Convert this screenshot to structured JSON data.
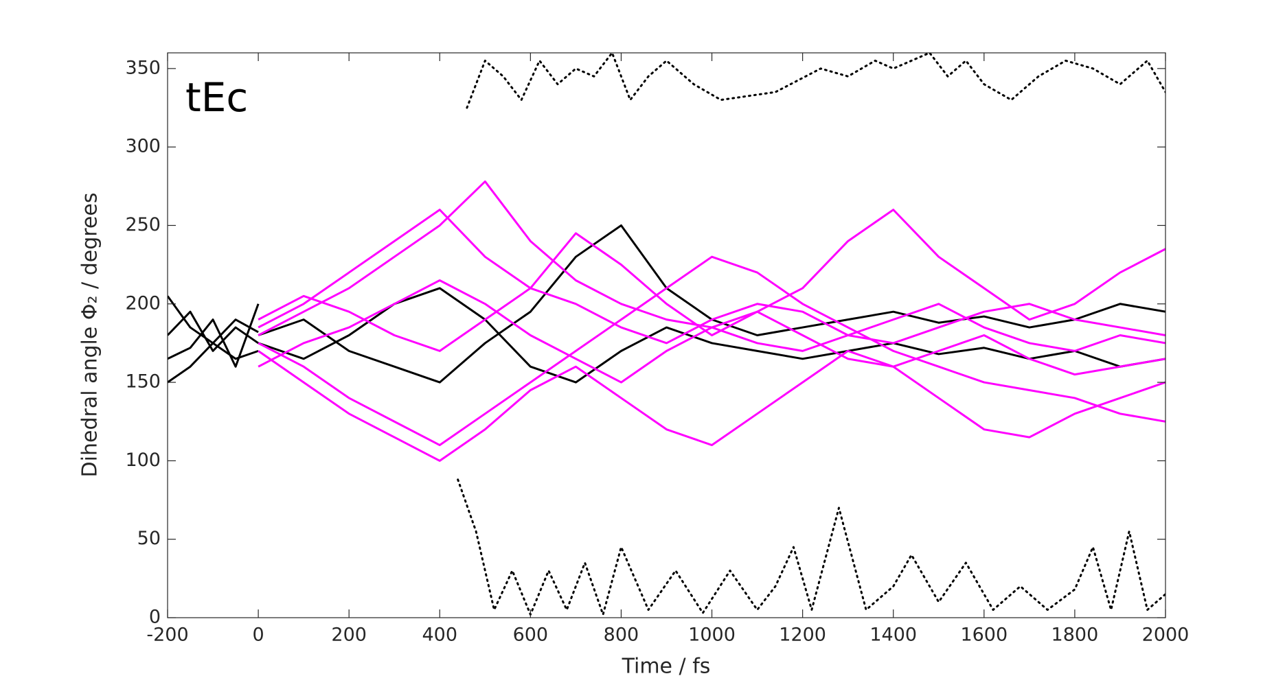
{
  "chart_data": {
    "type": "line",
    "annotation": "tEc",
    "x_label": "Time / fs",
    "y_label": "Dihedral angle Φ₂ / degrees",
    "xlim": [
      -200,
      2000
    ],
    "xticks": [
      -200,
      0,
      200,
      400,
      600,
      800,
      1000,
      1200,
      1400,
      1600,
      1800,
      2000
    ],
    "ylim": [
      0,
      360
    ],
    "yticks": [
      0,
      50,
      100,
      150,
      200,
      250,
      300,
      350
    ],
    "series": [
      {
        "color": "#000000",
        "x": [
          -200,
          -150,
          -100,
          -50,
          0
        ],
        "values": [
          180,
          195,
          170,
          185,
          175
        ]
      },
      {
        "color": "#000000",
        "x": [
          -200,
          -150,
          -100,
          -50,
          0
        ],
        "values": [
          165,
          172,
          190,
          160,
          200
        ]
      },
      {
        "color": "#000000",
        "x": [
          -200,
          -150,
          -100,
          -50,
          0
        ],
        "values": [
          205,
          185,
          175,
          190,
          182
        ]
      },
      {
        "color": "#000000",
        "x": [
          -200,
          -150,
          -100,
          -50,
          0
        ],
        "values": [
          150,
          160,
          175,
          165,
          170
        ]
      },
      {
        "color": "#000000",
        "x": [
          0,
          100,
          200,
          300,
          400,
          500,
          600,
          700,
          800,
          900,
          1000,
          1100,
          1200,
          1300,
          1400,
          1500,
          1600,
          1700,
          1800,
          1900,
          2000
        ],
        "values": [
          180,
          190,
          170,
          160,
          150,
          175,
          195,
          230,
          250,
          210,
          190,
          180,
          185,
          190,
          195,
          188,
          192,
          185,
          190,
          200,
          195
        ]
      },
      {
        "color": "#000000",
        "x": [
          0,
          100,
          200,
          300,
          400,
          500,
          600,
          700,
          800,
          900,
          1000,
          1100,
          1200,
          1300,
          1400,
          1500,
          1600,
          1700,
          1800,
          1900,
          2000
        ],
        "values": [
          175,
          165,
          180,
          200,
          210,
          190,
          160,
          150,
          170,
          185,
          175,
          170,
          165,
          170,
          175,
          168,
          172,
          165,
          170,
          160,
          165
        ]
      },
      {
        "color": "#ff00ff",
        "x": [
          0,
          100,
          200,
          300,
          400,
          500,
          600,
          700,
          800,
          900,
          1000,
          1100,
          1200,
          1300,
          1400,
          1500,
          1600,
          1700,
          1800,
          1900,
          2000
        ],
        "values": [
          180,
          195,
          210,
          230,
          250,
          278,
          240,
          215,
          200,
          190,
          185,
          175,
          170,
          180,
          190,
          200,
          185,
          175,
          170,
          180,
          175
        ]
      },
      {
        "color": "#ff00ff",
        "x": [
          0,
          100,
          200,
          300,
          400,
          500,
          600,
          700,
          800,
          900,
          1000,
          1100,
          1200,
          1300,
          1400,
          1500,
          1600,
          1700,
          1800,
          1900,
          2000
        ],
        "values": [
          175,
          160,
          140,
          125,
          110,
          130,
          150,
          170,
          190,
          210,
          230,
          220,
          200,
          185,
          170,
          160,
          150,
          145,
          140,
          130,
          125
        ]
      },
      {
        "color": "#ff00ff",
        "x": [
          0,
          100,
          200,
          300,
          400,
          500,
          600,
          700,
          800,
          900,
          1000,
          1100,
          1200,
          1300,
          1400,
          1500,
          1600,
          1700,
          1800,
          1900,
          2000
        ],
        "values": [
          185,
          200,
          220,
          240,
          260,
          230,
          210,
          245,
          225,
          200,
          180,
          195,
          210,
          240,
          260,
          230,
          210,
          190,
          200,
          220,
          235
        ]
      },
      {
        "color": "#ff00ff",
        "x": [
          0,
          100,
          200,
          300,
          400,
          500,
          600,
          700,
          800,
          900,
          1000,
          1100,
          1200,
          1300,
          1400,
          1500,
          1600,
          1700,
          1800,
          1900,
          2000
        ],
        "values": [
          170,
          150,
          130,
          115,
          100,
          120,
          145,
          160,
          140,
          120,
          110,
          130,
          150,
          170,
          160,
          140,
          120,
          115,
          130,
          140,
          150
        ]
      },
      {
        "color": "#ff00ff",
        "x": [
          0,
          100,
          200,
          300,
          400,
          500,
          600,
          700,
          800,
          900,
          1000,
          1100,
          1200,
          1300,
          1400,
          1500,
          1600,
          1700,
          1800,
          1900,
          2000
        ],
        "values": [
          190,
          205,
          195,
          180,
          170,
          190,
          210,
          200,
          185,
          175,
          190,
          200,
          195,
          180,
          175,
          185,
          195,
          200,
          190,
          185,
          180
        ]
      },
      {
        "color": "#ff00ff",
        "x": [
          0,
          100,
          200,
          300,
          400,
          500,
          600,
          700,
          800,
          900,
          1000,
          1100,
          1200,
          1300,
          1400,
          1500,
          1600,
          1700,
          1800,
          1900,
          2000
        ],
        "values": [
          160,
          175,
          185,
          200,
          215,
          200,
          180,
          165,
          150,
          170,
          185,
          195,
          180,
          165,
          160,
          170,
          180,
          165,
          155,
          160,
          165
        ]
      },
      {
        "color": "#000000",
        "dash": "dotted",
        "x": [
          440,
          480,
          520,
          560,
          600,
          640,
          680,
          720,
          760,
          800,
          860,
          920,
          980,
          1040,
          1100,
          1140,
          1180,
          1220,
          1280,
          1340,
          1400,
          1440,
          1500,
          1560,
          1620,
          1680,
          1740,
          1800,
          1840,
          1880,
          1920,
          1960,
          2000
        ],
        "values": [
          88,
          55,
          5,
          30,
          2,
          30,
          5,
          35,
          2,
          45,
          5,
          30,
          3,
          30,
          5,
          20,
          45,
          5,
          70,
          5,
          20,
          40,
          10,
          35,
          5,
          20,
          5,
          18,
          45,
          5,
          55,
          5,
          15
        ]
      },
      {
        "color": "#000000",
        "dash": "dotted",
        "x": [
          460,
          500,
          540,
          580,
          620,
          660,
          700,
          740,
          780,
          820,
          860,
          900,
          960,
          1020,
          1140,
          1240,
          1300,
          1360,
          1400,
          1480,
          1520,
          1560,
          1600,
          1660,
          1720,
          1780,
          1840,
          1900,
          1960,
          2000
        ],
        "values": [
          325,
          355,
          345,
          330,
          355,
          340,
          350,
          345,
          360,
          330,
          345,
          355,
          340,
          330,
          335,
          350,
          345,
          355,
          350,
          360,
          345,
          355,
          340,
          330,
          345,
          355,
          350,
          340,
          355,
          335
        ]
      }
    ]
  }
}
